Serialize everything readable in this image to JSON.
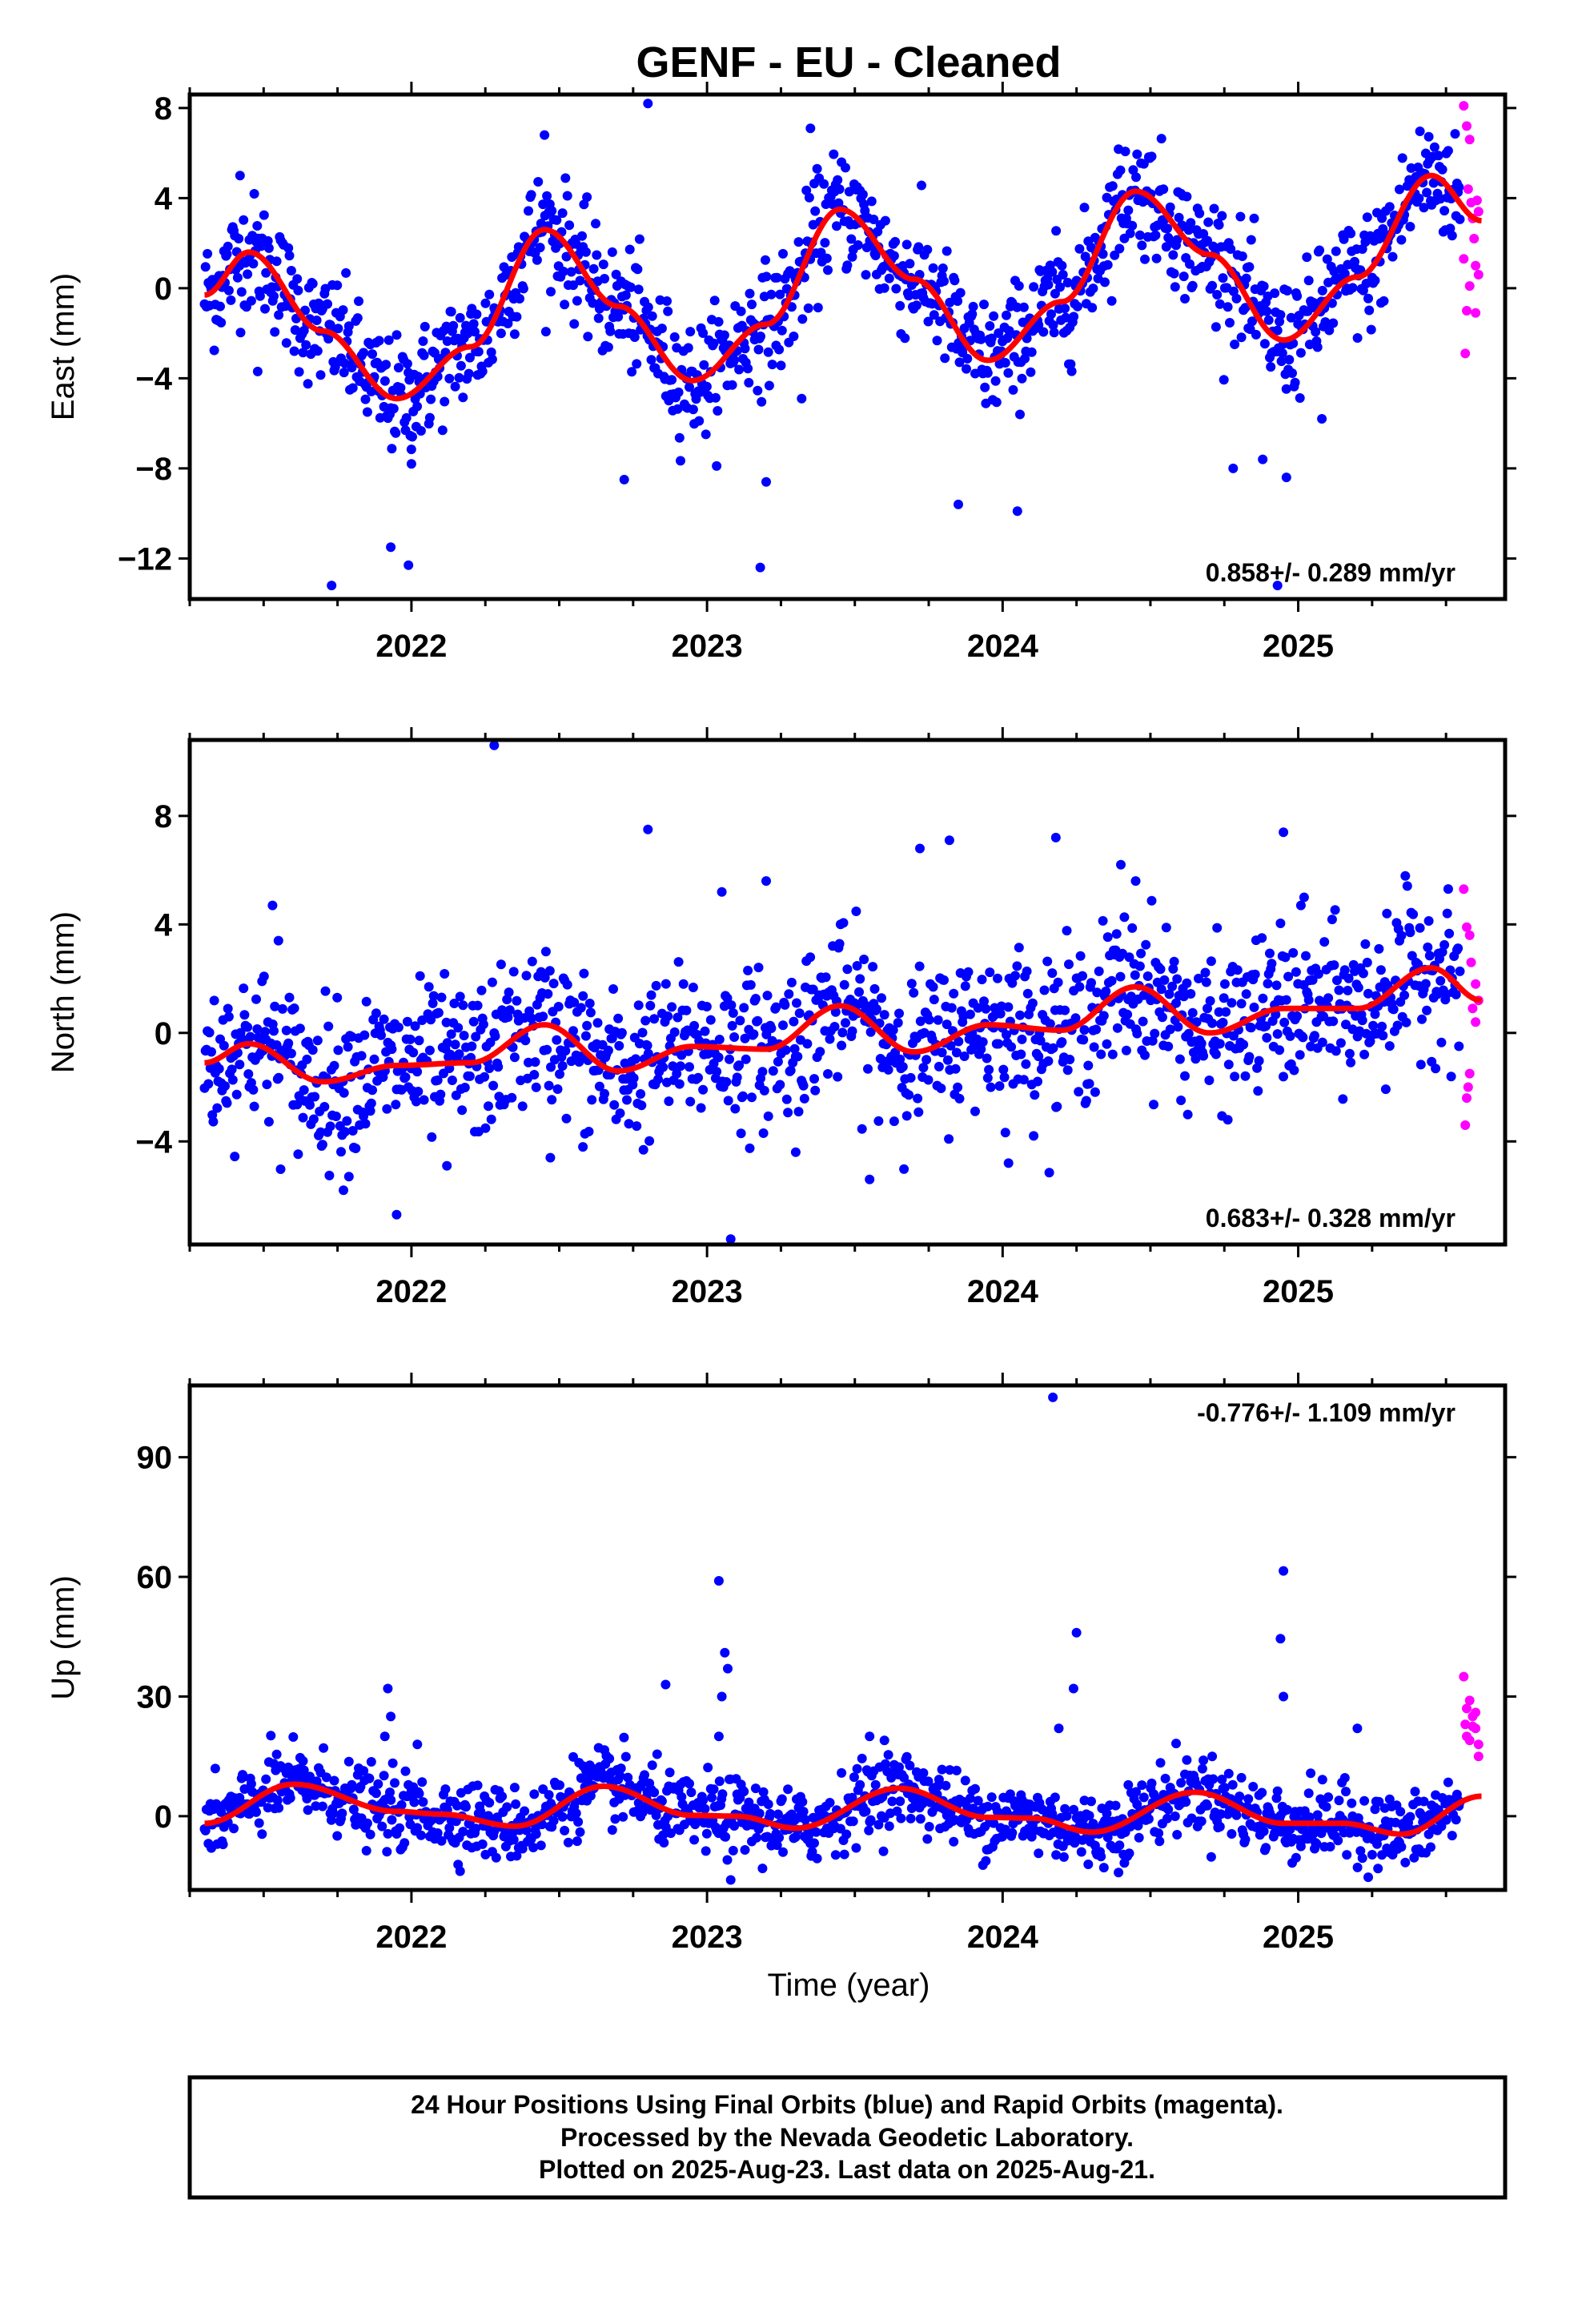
{
  "title": "GENF  - EU - Cleaned",
  "xlabel": "Time (year)",
  "footer": {
    "line1": "24 Hour Positions Using Final Orbits (blue) and Rapid Orbits (magenta).",
    "line2": "Processed by the Nevada Geodetic Laboratory.",
    "line3": "Plotted on 2025-Aug-23. Last data on 2025-Aug-21."
  },
  "colors": {
    "final": "#0000ff",
    "rapid": "#ff00ff",
    "model": "#ff0000",
    "axes": "#000000"
  },
  "chart_data": [
    {
      "type": "scatter",
      "ylabel": "East (mm)",
      "ylim": [
        -13.8,
        8.6
      ],
      "xlim": [
        2021.25,
        2025.7
      ],
      "yticks": [
        8,
        4,
        0,
        -4,
        -8,
        -12
      ],
      "ytick_labels": [
        "8",
        "4",
        "0",
        "−4",
        "−8",
        "−12"
      ],
      "xticks": [
        2022,
        2023,
        2024,
        2025
      ],
      "rate_text": "0.858+/- 0.289 mm/yr",
      "rate_position": "bottom-right",
      "model": [
        [
          2021.3,
          -0.3
        ],
        [
          2021.45,
          1.6
        ],
        [
          2021.7,
          -1.9
        ],
        [
          2021.95,
          -4.9
        ],
        [
          2022.2,
          -2.6
        ],
        [
          2022.45,
          2.6
        ],
        [
          2022.7,
          -0.8
        ],
        [
          2022.95,
          -4.1
        ],
        [
          2023.2,
          -1.6
        ],
        [
          2023.45,
          3.5
        ],
        [
          2023.7,
          0.4
        ],
        [
          2023.95,
          -3.2
        ],
        [
          2024.2,
          -0.6
        ],
        [
          2024.45,
          4.3
        ],
        [
          2024.7,
          1.5
        ],
        [
          2024.95,
          -2.3
        ],
        [
          2025.2,
          0.5
        ],
        [
          2025.45,
          5.0
        ],
        [
          2025.62,
          3.0
        ]
      ],
      "seasonal": {
        "amp": 3.2,
        "spread": 1.3
      },
      "outliers": [
        [
          2021.42,
          5.0
        ],
        [
          2021.48,
          -3.7
        ],
        [
          2021.73,
          -13.2
        ],
        [
          2021.93,
          -11.5
        ],
        [
          2021.99,
          -12.3
        ],
        [
          2022.0,
          -7.8
        ],
        [
          2022.45,
          6.8
        ],
        [
          2022.72,
          -8.5
        ],
        [
          2022.8,
          8.2
        ],
        [
          2023.18,
          -12.4
        ],
        [
          2023.2,
          -8.6
        ],
        [
          2023.32,
          -4.9
        ],
        [
          2023.35,
          7.1
        ],
        [
          2023.85,
          -9.6
        ],
        [
          2024.05,
          -9.9
        ],
        [
          2024.78,
          -8.0
        ],
        [
          2024.88,
          -7.6
        ],
        [
          2024.93,
          -13.2
        ],
        [
          2024.96,
          -8.4
        ],
        [
          2025.08,
          -5.8
        ]
      ],
      "rapid": [
        [
          2025.56,
          8.1
        ],
        [
          2025.57,
          7.2
        ],
        [
          2025.58,
          6.6
        ],
        [
          2025.575,
          4.4
        ],
        [
          2025.585,
          3.8
        ],
        [
          2025.59,
          3.1
        ],
        [
          2025.595,
          2.2
        ],
        [
          2025.6,
          1.0
        ],
        [
          2025.58,
          0.1
        ],
        [
          2025.57,
          -1.0
        ],
        [
          2025.565,
          -2.9
        ],
        [
          2025.6,
          -1.1
        ],
        [
          2025.61,
          3.4
        ],
        [
          2025.605,
          3.9
        ],
        [
          2025.56,
          1.3
        ],
        [
          2025.61,
          0.6
        ]
      ]
    },
    {
      "type": "scatter",
      "ylabel": "North (mm)",
      "ylim": [
        -7.8,
        10.8
      ],
      "xlim": [
        2021.25,
        2025.7
      ],
      "yticks": [
        8,
        4,
        0,
        -4
      ],
      "ytick_labels": [
        "8",
        "4",
        "0",
        "−4"
      ],
      "xticks": [
        2022,
        2023,
        2024,
        2025
      ],
      "rate_text": "0.683+/- 0.328 mm/yr",
      "rate_position": "bottom-right",
      "model": [
        [
          2021.3,
          -1.1
        ],
        [
          2021.45,
          -0.4
        ],
        [
          2021.7,
          -1.8
        ],
        [
          2021.95,
          -1.2
        ],
        [
          2022.2,
          -1.1
        ],
        [
          2022.45,
          0.3
        ],
        [
          2022.7,
          -1.4
        ],
        [
          2022.95,
          -0.5
        ],
        [
          2023.2,
          -0.6
        ],
        [
          2023.45,
          1.0
        ],
        [
          2023.7,
          -0.7
        ],
        [
          2023.95,
          0.3
        ],
        [
          2024.2,
          0.1
        ],
        [
          2024.45,
          1.7
        ],
        [
          2024.7,
          0.0
        ],
        [
          2024.95,
          0.9
        ],
        [
          2025.2,
          0.9
        ],
        [
          2025.45,
          2.4
        ],
        [
          2025.62,
          1.2
        ]
      ],
      "seasonal": {
        "amp": 0.8,
        "spread": 1.4
      },
      "outliers": [
        [
          2021.53,
          4.7
        ],
        [
          2021.55,
          3.4
        ],
        [
          2021.77,
          -5.8
        ],
        [
          2021.95,
          -6.7
        ],
        [
          2022.12,
          -4.9
        ],
        [
          2022.28,
          10.6
        ],
        [
          2022.47,
          -4.6
        ],
        [
          2022.58,
          -4.2
        ],
        [
          2022.8,
          7.5
        ],
        [
          2023.05,
          5.2
        ],
        [
          2023.08,
          -7.6
        ],
        [
          2023.2,
          5.6
        ],
        [
          2023.3,
          -4.4
        ],
        [
          2023.55,
          -5.4
        ],
        [
          2023.72,
          6.8
        ],
        [
          2023.82,
          7.1
        ],
        [
          2024.02,
          -4.8
        ],
        [
          2024.18,
          7.2
        ],
        [
          2024.4,
          6.2
        ],
        [
          2024.45,
          5.6
        ],
        [
          2024.95,
          7.4
        ],
        [
          2025.02,
          5.0
        ],
        [
          2025.3,
          4.4
        ]
      ],
      "rapid": [
        [
          2025.56,
          5.3
        ],
        [
          2025.57,
          3.9
        ],
        [
          2025.58,
          3.6
        ],
        [
          2025.585,
          2.6
        ],
        [
          2025.6,
          1.8
        ],
        [
          2025.59,
          0.9
        ],
        [
          2025.6,
          0.4
        ],
        [
          2025.58,
          -1.5
        ],
        [
          2025.575,
          -2.0
        ],
        [
          2025.57,
          -2.4
        ],
        [
          2025.565,
          -3.4
        ],
        [
          2025.61,
          1.2
        ]
      ]
    },
    {
      "type": "scatter",
      "ylabel": "Up (mm)",
      "ylim": [
        -18.5,
        108
      ],
      "xlim": [
        2021.25,
        2025.7
      ],
      "yticks": [
        90,
        60,
        30,
        0
      ],
      "ytick_labels": [
        "90",
        "60",
        "30",
        "0"
      ],
      "xticks": [
        2022,
        2023,
        2024,
        2025
      ],
      "rate_text": "-0.776+/- 1.109 mm/yr",
      "rate_position": "top-right",
      "model": [
        [
          2021.3,
          -1.8
        ],
        [
          2021.6,
          8.0
        ],
        [
          2021.95,
          1.2
        ],
        [
          2022.1,
          0.5
        ],
        [
          2022.35,
          -2.5
        ],
        [
          2022.65,
          7.5
        ],
        [
          2022.95,
          0.2
        ],
        [
          2023.1,
          0.0
        ],
        [
          2023.3,
          -3.0
        ],
        [
          2023.65,
          7.0
        ],
        [
          2023.95,
          -0.3
        ],
        [
          2024.1,
          -0.5
        ],
        [
          2024.3,
          -4.0
        ],
        [
          2024.65,
          6.0
        ],
        [
          2024.95,
          -1.8
        ],
        [
          2025.15,
          -1.8
        ],
        [
          2025.35,
          -4.5
        ],
        [
          2025.62,
          5.0
        ]
      ],
      "seasonal": {
        "amp": 0,
        "spread": 4.6
      },
      "outliers": [
        [
          2021.92,
          32.0
        ],
        [
          2021.93,
          25.0
        ],
        [
          2021.91,
          20.0
        ],
        [
          2022.02,
          18.0
        ],
        [
          2022.86,
          33.0
        ],
        [
          2023.04,
          59.0
        ],
        [
          2023.06,
          41.0
        ],
        [
          2023.07,
          37.0
        ],
        [
          2023.05,
          30.0
        ],
        [
          2023.04,
          20.0
        ],
        [
          2023.08,
          -16.0
        ],
        [
          2023.55,
          20.0
        ],
        [
          2023.6,
          19.0
        ],
        [
          2024.17,
          105.0
        ],
        [
          2024.25,
          46.0
        ],
        [
          2024.24,
          32.0
        ],
        [
          2024.19,
          22.0
        ],
        [
          2024.95,
          61.5
        ],
        [
          2024.94,
          44.5
        ],
        [
          2024.95,
          30.0
        ],
        [
          2025.2,
          22.0
        ]
      ],
      "rapid": [
        [
          2025.56,
          35.0
        ],
        [
          2025.58,
          29.0
        ],
        [
          2025.59,
          25.0
        ],
        [
          2025.6,
          22.0
        ],
        [
          2025.57,
          20.0
        ],
        [
          2025.61,
          18.0
        ],
        [
          2025.6,
          26.0
        ],
        [
          2025.58,
          19.0
        ],
        [
          2025.565,
          23.0
        ],
        [
          2025.61,
          15.0
        ],
        [
          2025.59,
          22.5
        ],
        [
          2025.57,
          27.0
        ]
      ]
    }
  ]
}
